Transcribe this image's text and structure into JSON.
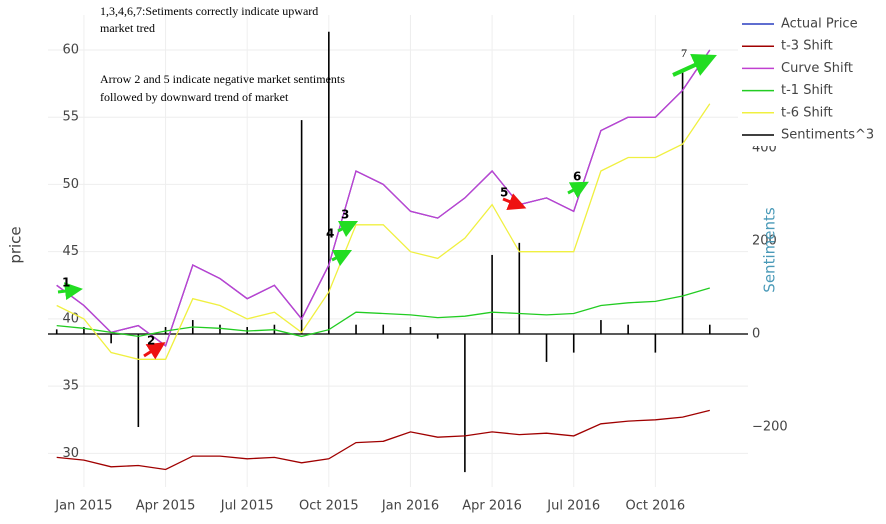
{
  "chart_data": {
    "type": "line",
    "yaxis_title": "price",
    "y2axis_title": "Sentiments",
    "x": [
      "2014-12",
      "2015-01",
      "2015-02",
      "2015-03",
      "2015-04",
      "2015-05",
      "2015-06",
      "2015-07",
      "2015-08",
      "2015-09",
      "2015-10",
      "2015-11",
      "2015-12",
      "2016-01",
      "2016-02",
      "2016-03",
      "2016-04",
      "2016-05",
      "2016-06",
      "2016-07",
      "2016-08",
      "2016-09",
      "2016-10",
      "2016-11",
      "2016-12"
    ],
    "xlim": [
      "2014-11",
      "2017-01"
    ],
    "xticks": [
      {
        "value": "2015-01",
        "label": "Jan 2015"
      },
      {
        "value": "2015-04",
        "label": "Apr 2015"
      },
      {
        "value": "2015-07",
        "label": "Jul 2015"
      },
      {
        "value": "2015-10",
        "label": "Oct 2015"
      },
      {
        "value": "2016-01",
        "label": "Jan 2016"
      },
      {
        "value": "2016-04",
        "label": "Apr 2016"
      },
      {
        "value": "2016-07",
        "label": "Jul 2016"
      },
      {
        "value": "2016-10",
        "label": "Oct 2016"
      }
    ],
    "ylim": [
      27.5,
      62.6
    ],
    "yticks": [
      30,
      35,
      40,
      45,
      50,
      55,
      60
    ],
    "y2lim": [
      -329,
      686
    ],
    "y2ticks": [
      {
        "value": -200,
        "label": "−200"
      },
      0,
      200,
      400
    ],
    "grid": true,
    "legend": "top-right",
    "series": [
      {
        "name": "Actual Price",
        "color": "#2a3fc0",
        "values": [
          42.5,
          41,
          39,
          39.5,
          38,
          44,
          43,
          41.5,
          42.5,
          40,
          44,
          51,
          50,
          48,
          47.5,
          49,
          51,
          48.5,
          49,
          48,
          54,
          55,
          55,
          57,
          60
        ]
      },
      {
        "name": "t-3 Shift",
        "color": "#a00000",
        "values": [
          29.7,
          29.5,
          29,
          29.1,
          28.8,
          29.8,
          29.8,
          29.6,
          29.7,
          29.3,
          29.6,
          30.8,
          30.9,
          31.6,
          31.2,
          31.3,
          31.6,
          31.4,
          31.5,
          31.3,
          32.2,
          32.4,
          32.5,
          32.7,
          33.2
        ]
      },
      {
        "name": "Curve Shift",
        "color": "#c040d0",
        "values": [
          42.5,
          41,
          39,
          39.5,
          38,
          44,
          43,
          41.5,
          42.5,
          40,
          44,
          51,
          50,
          48,
          47.5,
          49,
          51,
          48.5,
          49,
          48,
          54,
          55,
          55,
          57,
          60
        ]
      },
      {
        "name": "t-1 Shift",
        "color": "#22cc22",
        "values": [
          39.5,
          39.3,
          39,
          38.7,
          39.1,
          39.4,
          39.3,
          39.1,
          39.2,
          38.7,
          39.2,
          40.5,
          40.4,
          40.3,
          40.1,
          40.2,
          40.5,
          40.4,
          40.3,
          40.4,
          41,
          41.2,
          41.3,
          41.7,
          42.3
        ]
      },
      {
        "name": "t-6 Shift",
        "color": "#f0f040",
        "values": [
          41,
          40,
          37.5,
          37,
          37,
          41.5,
          41,
          40,
          40.5,
          39,
          42,
          47,
          47,
          45,
          44.5,
          46,
          48.5,
          45,
          45,
          45,
          51,
          52,
          52,
          53,
          56
        ]
      },
      {
        "name": "Sentiments^3",
        "color": "#000000",
        "type": "bar",
        "axis": "y2",
        "values": [
          10,
          15,
          -20,
          -200,
          15,
          30,
          20,
          15,
          20,
          460,
          650,
          20,
          20,
          15,
          -10,
          -297,
          170,
          196,
          -60,
          -40,
          30,
          20,
          -40,
          563,
          20
        ]
      }
    ],
    "annotations": [
      {
        "lines": [
          "1,3,4,6,7:Setiments correctly indicate upward",
          "market tred"
        ]
      },
      {
        "lines": [
          "Arrow 2 and 5 indicate negative market sentiments",
          "followed by downward trend of market"
        ]
      }
    ],
    "arrow_labels": [
      "1",
      "2",
      "3",
      "4",
      "5",
      "6",
      "7"
    ]
  }
}
